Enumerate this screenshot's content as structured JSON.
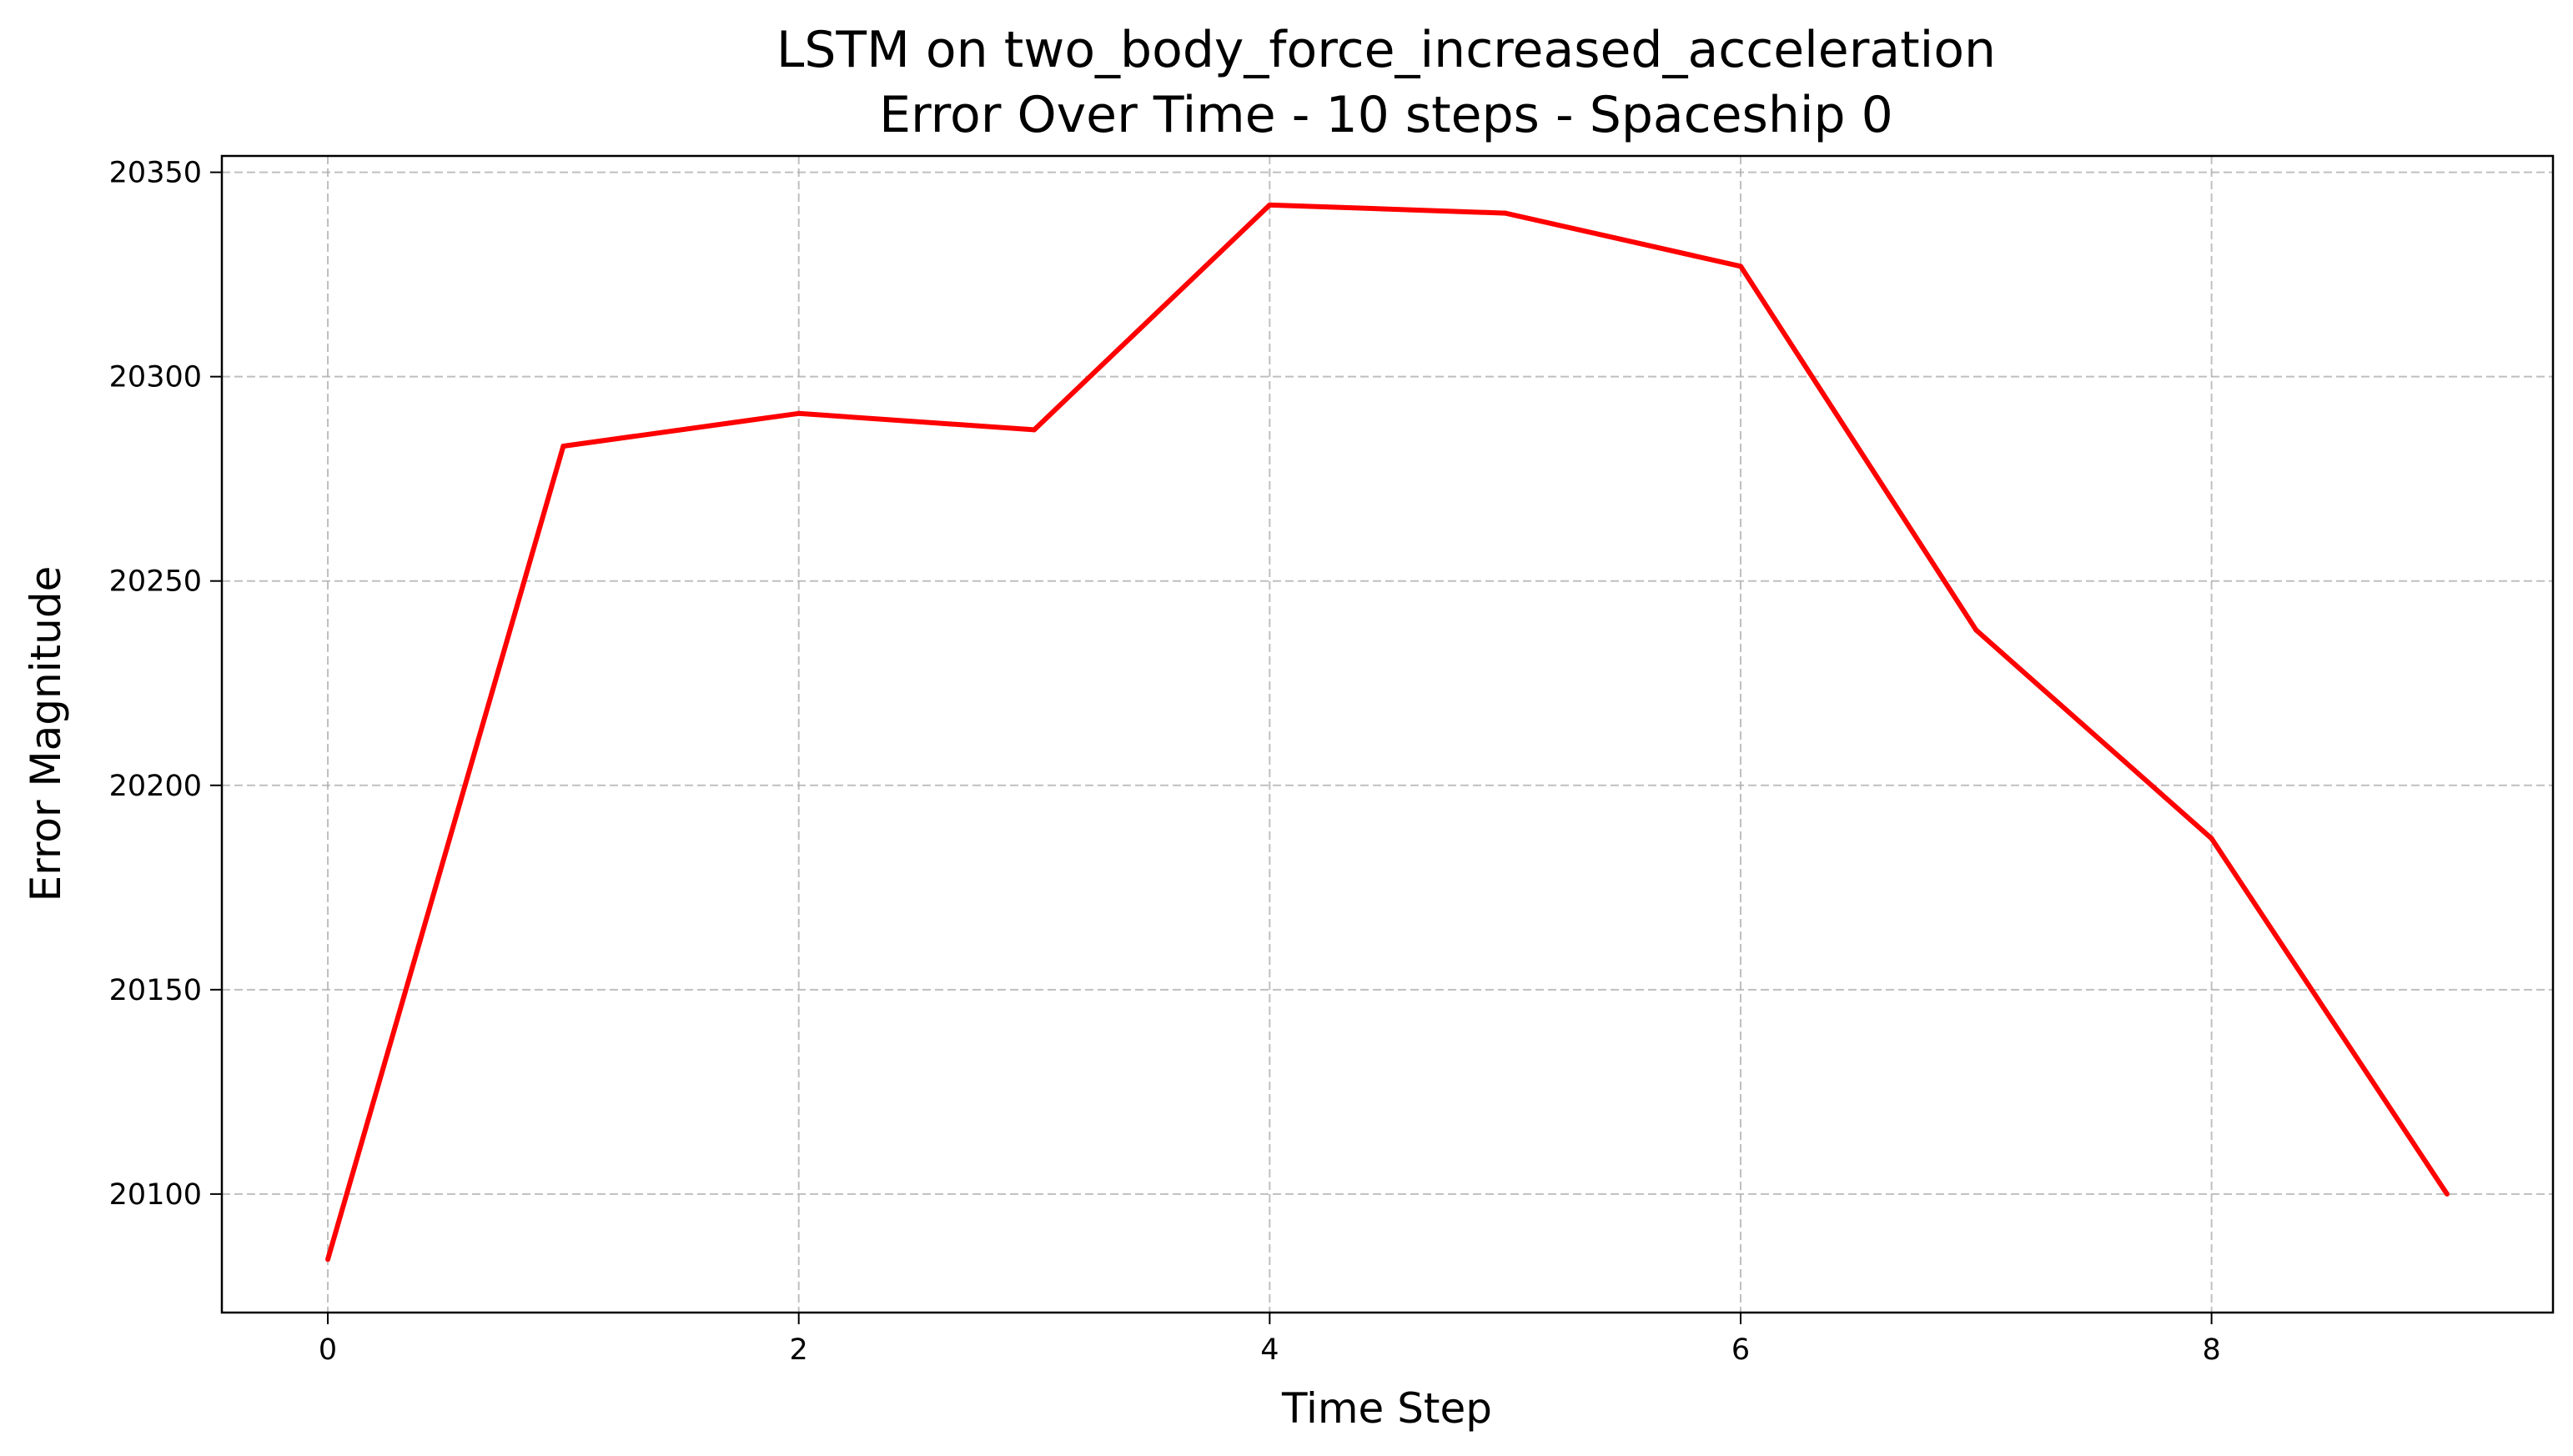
{
  "chart_data": {
    "type": "line",
    "title": "LSTM on two_body_force_increased_acceleration",
    "subtitle": "Error Over Time - 10 steps - Spaceship 0",
    "xlabel": "Time Step",
    "ylabel": "Error Magnitude",
    "x": [
      0,
      1,
      2,
      3,
      4,
      5,
      6,
      7,
      8,
      9
    ],
    "series": [
      {
        "values": [
          20084,
          20283,
          20291,
          20287,
          20342,
          20340,
          20327,
          20238,
          20187,
          20100
        ],
        "color": "#ff0000"
      }
    ],
    "xlim": [
      -0.45,
      9.45
    ],
    "ylim": [
      20071,
      20354
    ],
    "xticks": [
      0,
      2,
      4,
      6,
      8
    ],
    "yticks": [
      20100,
      20150,
      20200,
      20250,
      20300,
      20350
    ],
    "grid": true
  }
}
